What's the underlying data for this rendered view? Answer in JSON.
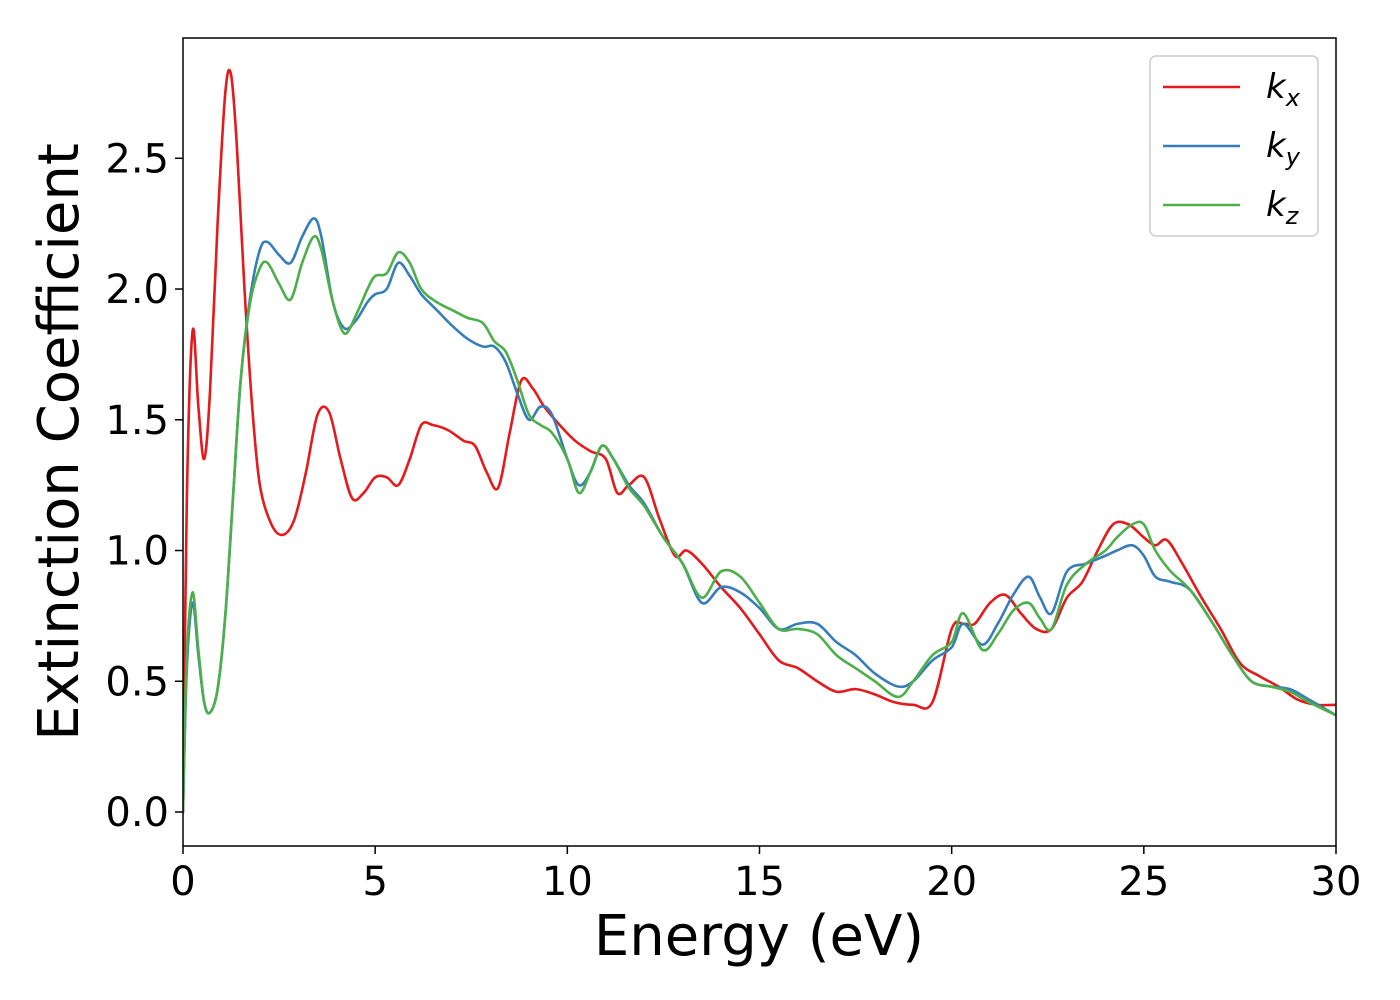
{
  "chart_data": {
    "type": "line",
    "xlabel": "Energy (eV)",
    "ylabel": "Extinction Coefficient",
    "xlim": [
      0,
      30
    ],
    "ylim": [
      -0.13,
      2.96
    ],
    "xticks": [
      0,
      5,
      10,
      15,
      20,
      25,
      30
    ],
    "xtick_labels": [
      "0",
      "5",
      "10",
      "15",
      "20",
      "25",
      "30"
    ],
    "yticks": [
      0.0,
      0.5,
      1.0,
      1.5,
      2.0,
      2.5
    ],
    "ytick_labels": [
      "0.0",
      "0.5",
      "1.0",
      "1.5",
      "2.0",
      "2.5"
    ],
    "grid": false,
    "legend_position": "top-right",
    "series": [
      {
        "name": "k",
        "subscript": "x",
        "color": "#e41a1c",
        "x": [
          0,
          0.1,
          0.25,
          0.4,
          0.55,
          0.7,
          0.9,
          1.1,
          1.25,
          1.4,
          1.6,
          1.8,
          2.0,
          2.3,
          2.6,
          2.9,
          3.2,
          3.5,
          3.8,
          4.1,
          4.4,
          4.7,
          5.0,
          5.3,
          5.6,
          5.9,
          6.2,
          6.5,
          6.9,
          7.3,
          7.6,
          7.9,
          8.2,
          8.5,
          8.8,
          9.1,
          9.4,
          9.8,
          10.2,
          10.6,
          11.0,
          11.3,
          11.6,
          12.0,
          12.4,
          12.8,
          13.1,
          13.5,
          14.0,
          14.5,
          15.0,
          15.5,
          16.0,
          16.5,
          17.0,
          17.5,
          18.0,
          18.5,
          19.0,
          19.5,
          20.0,
          20.3,
          20.6,
          21.0,
          21.4,
          21.8,
          22.2,
          22.6,
          23.0,
          23.4,
          23.8,
          24.2,
          24.6,
          25.0,
          25.3,
          25.6,
          26.0,
          26.5,
          27.0,
          27.5,
          28.0,
          28.5,
          29.0,
          29.5,
          30.0
        ],
        "y": [
          0.0,
          1.2,
          1.84,
          1.55,
          1.35,
          1.6,
          2.25,
          2.75,
          2.82,
          2.55,
          2.0,
          1.55,
          1.25,
          1.1,
          1.06,
          1.12,
          1.3,
          1.52,
          1.53,
          1.35,
          1.2,
          1.22,
          1.28,
          1.28,
          1.25,
          1.35,
          1.48,
          1.48,
          1.46,
          1.42,
          1.4,
          1.3,
          1.24,
          1.45,
          1.65,
          1.62,
          1.55,
          1.48,
          1.42,
          1.38,
          1.35,
          1.22,
          1.25,
          1.28,
          1.12,
          0.98,
          1.0,
          0.95,
          0.86,
          0.78,
          0.68,
          0.58,
          0.55,
          0.5,
          0.46,
          0.47,
          0.45,
          0.42,
          0.41,
          0.42,
          0.7,
          0.72,
          0.72,
          0.8,
          0.83,
          0.76,
          0.7,
          0.7,
          0.82,
          0.88,
          1.0,
          1.1,
          1.1,
          1.05,
          1.02,
          1.04,
          0.95,
          0.82,
          0.7,
          0.57,
          0.52,
          0.48,
          0.43,
          0.41,
          0.41
        ]
      },
      {
        "name": "k",
        "subscript": "y",
        "color": "#377eb8",
        "x": [
          0,
          0.1,
          0.25,
          0.4,
          0.55,
          0.7,
          0.9,
          1.1,
          1.3,
          1.5,
          1.75,
          2.0,
          2.2,
          2.5,
          2.8,
          3.1,
          3.4,
          3.6,
          3.9,
          4.2,
          4.5,
          4.8,
          5.0,
          5.3,
          5.6,
          5.9,
          6.2,
          6.6,
          7.0,
          7.4,
          7.8,
          8.1,
          8.4,
          8.7,
          9.0,
          9.3,
          9.6,
          10.0,
          10.3,
          10.6,
          10.9,
          11.2,
          11.6,
          12.0,
          12.5,
          13.0,
          13.5,
          14.0,
          14.5,
          15.0,
          15.5,
          16.0,
          16.5,
          17.0,
          17.5,
          18.0,
          18.6,
          19.0,
          19.5,
          20.0,
          20.3,
          20.8,
          21.2,
          21.6,
          22.0,
          22.3,
          22.6,
          23.0,
          23.5,
          24.0,
          24.3,
          24.7,
          25.0,
          25.3,
          25.7,
          26.2,
          26.8,
          27.3,
          27.8,
          28.3,
          28.8,
          29.3,
          30.0
        ],
        "y": [
          0.0,
          0.55,
          0.8,
          0.6,
          0.42,
          0.38,
          0.47,
          0.75,
          1.2,
          1.65,
          1.97,
          2.15,
          2.18,
          2.13,
          2.1,
          2.2,
          2.27,
          2.2,
          1.95,
          1.85,
          1.88,
          1.95,
          1.98,
          2.0,
          2.1,
          2.05,
          1.98,
          1.92,
          1.86,
          1.81,
          1.78,
          1.78,
          1.72,
          1.6,
          1.5,
          1.55,
          1.52,
          1.35,
          1.25,
          1.3,
          1.4,
          1.35,
          1.25,
          1.18,
          1.05,
          0.95,
          0.8,
          0.86,
          0.84,
          0.78,
          0.7,
          0.72,
          0.72,
          0.65,
          0.6,
          0.53,
          0.48,
          0.5,
          0.58,
          0.63,
          0.72,
          0.64,
          0.72,
          0.83,
          0.9,
          0.82,
          0.76,
          0.92,
          0.95,
          0.98,
          1.0,
          1.02,
          0.98,
          0.9,
          0.88,
          0.85,
          0.72,
          0.6,
          0.5,
          0.48,
          0.47,
          0.43,
          0.37
        ]
      },
      {
        "name": "k",
        "subscript": "z",
        "color": "#4daf4a",
        "x": [
          0,
          0.1,
          0.25,
          0.4,
          0.55,
          0.7,
          0.9,
          1.1,
          1.3,
          1.5,
          1.75,
          2.0,
          2.2,
          2.5,
          2.8,
          3.1,
          3.4,
          3.6,
          3.9,
          4.2,
          4.5,
          4.8,
          5.0,
          5.3,
          5.6,
          5.9,
          6.2,
          6.6,
          7.0,
          7.4,
          7.8,
          8.1,
          8.4,
          8.7,
          9.0,
          9.3,
          9.6,
          10.0,
          10.3,
          10.6,
          10.9,
          11.2,
          11.6,
          12.0,
          12.5,
          13.0,
          13.5,
          14.0,
          14.5,
          15.0,
          15.5,
          16.0,
          16.5,
          17.0,
          17.5,
          18.0,
          18.6,
          19.0,
          19.5,
          20.0,
          20.3,
          20.8,
          21.2,
          21.6,
          22.0,
          22.3,
          22.6,
          23.0,
          23.5,
          24.0,
          24.3,
          24.7,
          25.0,
          25.3,
          25.7,
          26.2,
          26.8,
          27.3,
          27.8,
          28.3,
          28.8,
          29.3,
          30.0
        ],
        "y": [
          0.0,
          0.6,
          0.84,
          0.62,
          0.42,
          0.38,
          0.47,
          0.75,
          1.2,
          1.65,
          1.95,
          2.08,
          2.1,
          2.02,
          1.96,
          2.1,
          2.2,
          2.15,
          1.95,
          1.83,
          1.9,
          2.0,
          2.05,
          2.06,
          2.14,
          2.1,
          2.0,
          1.95,
          1.92,
          1.89,
          1.87,
          1.8,
          1.76,
          1.65,
          1.52,
          1.48,
          1.45,
          1.35,
          1.22,
          1.3,
          1.4,
          1.35,
          1.24,
          1.17,
          1.05,
          0.95,
          0.82,
          0.92,
          0.9,
          0.8,
          0.7,
          0.7,
          0.68,
          0.6,
          0.55,
          0.5,
          0.44,
          0.5,
          0.6,
          0.65,
          0.76,
          0.62,
          0.68,
          0.77,
          0.8,
          0.74,
          0.7,
          0.87,
          0.95,
          1.0,
          1.05,
          1.1,
          1.1,
          1.0,
          0.92,
          0.85,
          0.72,
          0.6,
          0.5,
          0.48,
          0.46,
          0.42,
          0.37
        ]
      }
    ]
  }
}
